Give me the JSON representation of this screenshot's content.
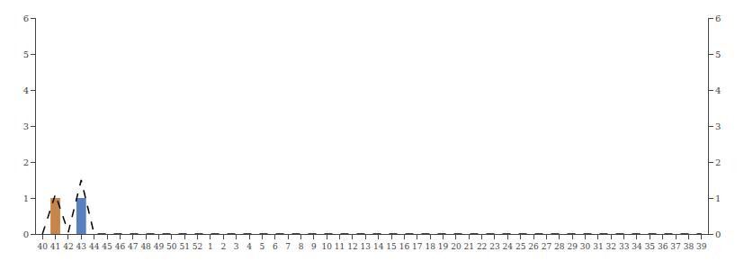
{
  "chart_data": {
    "type": "bar",
    "categories": [
      "40",
      "41",
      "42",
      "43",
      "44",
      "45",
      "46",
      "47",
      "48",
      "49",
      "50",
      "51",
      "52",
      "1",
      "2",
      "3",
      "4",
      "5",
      "6",
      "7",
      "8",
      "9",
      "10",
      "11",
      "12",
      "13",
      "14",
      "15",
      "16",
      "17",
      "18",
      "19",
      "20",
      "21",
      "22",
      "23",
      "24",
      "25",
      "26",
      "27",
      "28",
      "29",
      "30",
      "31",
      "32",
      "33",
      "34",
      "35",
      "36",
      "37",
      "38",
      "39"
    ],
    "series": [
      {
        "type": "bar",
        "color": "#c8854a",
        "values": [
          0,
          1,
          0,
          0,
          0,
          0,
          0,
          0,
          0,
          0,
          0,
          0,
          0,
          0,
          0,
          0,
          0,
          0,
          0,
          0,
          0,
          0,
          0,
          0,
          0,
          0,
          0,
          0,
          0,
          0,
          0,
          0,
          0,
          0,
          0,
          0,
          0,
          0,
          0,
          0,
          0,
          0,
          0,
          0,
          0,
          0,
          0,
          0,
          0,
          0,
          0,
          0
        ]
      },
      {
        "type": "bar",
        "color": "#5b7fbe",
        "values": [
          0,
          0,
          0,
          1,
          0,
          0,
          0,
          0,
          0,
          0,
          0,
          0,
          0,
          0,
          0,
          0,
          0,
          0,
          0,
          0,
          0,
          0,
          0,
          0,
          0,
          0,
          0,
          0,
          0,
          0,
          0,
          0,
          0,
          0,
          0,
          0,
          0,
          0,
          0,
          0,
          0,
          0,
          0,
          0,
          0,
          0,
          0,
          0,
          0,
          0,
          0,
          0
        ]
      },
      {
        "type": "line",
        "color": "#000000",
        "line_style": "dashed",
        "values": [
          0,
          1.1,
          0.05,
          1.5,
          0,
          0,
          0,
          0,
          0,
          0,
          0,
          0,
          0,
          0,
          0,
          0,
          0,
          0,
          0,
          0,
          0,
          0,
          0,
          0,
          0,
          0,
          0,
          0,
          0,
          0,
          0,
          0,
          0,
          0,
          0,
          0,
          0,
          0,
          0,
          0,
          0,
          0,
          0,
          0,
          0,
          0,
          0,
          0,
          0,
          0,
          0,
          0
        ]
      }
    ],
    "ylim": [
      0,
      6
    ],
    "yticks": [
      0,
      1,
      2,
      3,
      4,
      5,
      6
    ],
    "y2lim": [
      0,
      6
    ],
    "y2ticks": [
      0,
      1,
      2,
      3,
      4,
      5,
      6
    ],
    "grid": false
  }
}
